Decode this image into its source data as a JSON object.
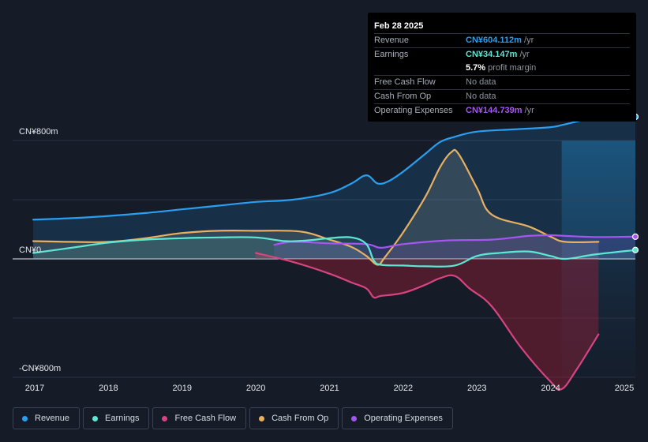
{
  "tooltip": {
    "date": "Feb 28 2025",
    "rows": [
      {
        "label": "Revenue",
        "value": "CN¥604.112m",
        "unit": " /yr",
        "color": "#2a9ff0"
      },
      {
        "label": "Earnings",
        "value": "CN¥34.147m",
        "unit": " /yr",
        "color": "#5ee8d4"
      },
      {
        "label": "",
        "value": "5.7%",
        "unit": " profit margin",
        "color": "#ffffff"
      },
      {
        "label": "Free Cash Flow",
        "value": "",
        "unit": "No data",
        "color": "#8e939d"
      },
      {
        "label": "Cash From Op",
        "value": "",
        "unit": "No data",
        "color": "#8e939d"
      },
      {
        "label": "Operating Expenses",
        "value": "CN¥144.739m",
        "unit": " /yr",
        "color": "#a655f2"
      }
    ]
  },
  "legend": [
    {
      "label": "Revenue",
      "color": "#2a9ff0"
    },
    {
      "label": "Earnings",
      "color": "#5ee8d4"
    },
    {
      "label": "Free Cash Flow",
      "color": "#d6457f"
    },
    {
      "label": "Cash From Op",
      "color": "#e8b063"
    },
    {
      "label": "Operating Expenses",
      "color": "#a655f2"
    }
  ],
  "chart_data": {
    "type": "line",
    "title": "",
    "xlabel": "",
    "ylabel": "",
    "ylim": [
      -800,
      800
    ],
    "y_tick_labels": [
      "CN¥800m",
      "CN¥0",
      "-CN¥800m"
    ],
    "y_tick_values": [
      800,
      0,
      -800
    ],
    "x_tick_labels": [
      "2017",
      "2018",
      "2019",
      "2020",
      "2021",
      "2022",
      "2023",
      "2024",
      "2025"
    ],
    "x_tick_values": [
      2017,
      2018,
      2019,
      2020,
      2021,
      2022,
      2023,
      2024,
      2025
    ],
    "xlim": [
      2016.7,
      2025.15
    ],
    "forecast_start": 2024.15,
    "series": [
      {
        "name": "Revenue",
        "color": "#2a9ff0",
        "x": [
          2016.98,
          2017.5,
          2018.0,
          2018.5,
          2019.0,
          2019.5,
          2020.0,
          2020.5,
          2021.0,
          2021.3,
          2021.5,
          2021.65,
          2021.8,
          2022.0,
          2022.3,
          2022.5,
          2022.7,
          2023.0,
          2023.5,
          2024.0,
          2024.2,
          2024.6,
          2025.15
        ],
        "y": [
          265,
          275,
          290,
          310,
          335,
          360,
          385,
          400,
          445,
          510,
          565,
          510,
          525,
          590,
          710,
          790,
          825,
          860,
          875,
          890,
          910,
          950,
          960
        ]
      },
      {
        "name": "Earnings",
        "color": "#5ee8d4",
        "x": [
          2016.98,
          2017.5,
          2018.0,
          2018.5,
          2019.0,
          2019.5,
          2020.0,
          2020.4,
          2020.7,
          2021.0,
          2021.3,
          2021.5,
          2021.6,
          2021.7,
          2022.0,
          2022.3,
          2022.7,
          2023.0,
          2023.3,
          2023.7,
          2024.0,
          2024.2,
          2024.6,
          2025.15
        ],
        "y": [
          40,
          75,
          110,
          130,
          140,
          145,
          145,
          120,
          125,
          140,
          145,
          100,
          -10,
          -40,
          -45,
          -50,
          -45,
          20,
          40,
          50,
          20,
          0,
          30,
          60
        ]
      },
      {
        "name": "Free Cash Flow",
        "color": "#d6457f",
        "x": [
          2020.0,
          2020.5,
          2021.0,
          2021.3,
          2021.5,
          2021.6,
          2021.7,
          2022.0,
          2022.3,
          2022.5,
          2022.7,
          2022.9,
          2023.2,
          2023.6,
          2024.0,
          2024.15,
          2024.35,
          2024.65
        ],
        "y": [
          40,
          -20,
          -100,
          -160,
          -200,
          -260,
          -250,
          -230,
          -175,
          -130,
          -115,
          -200,
          -320,
          -600,
          -830,
          -880,
          -750,
          -510
        ]
      },
      {
        "name": "Cash From Op",
        "color": "#e8b063",
        "x": [
          2016.98,
          2017.5,
          2018.0,
          2018.5,
          2019.0,
          2019.5,
          2020.0,
          2020.6,
          2021.0,
          2021.3,
          2021.5,
          2021.65,
          2021.75,
          2022.0,
          2022.3,
          2022.5,
          2022.65,
          2022.75,
          2023.0,
          2023.2,
          2023.7,
          2024.0,
          2024.2,
          2024.65
        ],
        "y": [
          120,
          115,
          115,
          140,
          175,
          190,
          190,
          185,
          130,
          80,
          20,
          -40,
          10,
          180,
          420,
          620,
          720,
          710,
          480,
          300,
          220,
          150,
          115,
          115
        ]
      },
      {
        "name": "Operating Expenses",
        "color": "#a655f2",
        "x": [
          2020.25,
          2020.5,
          2021.0,
          2021.5,
          2021.7,
          2022.0,
          2022.6,
          2023.2,
          2023.7,
          2024.0,
          2024.2,
          2024.6,
          2025.15
        ],
        "y": [
          95,
          115,
          105,
          100,
          75,
          100,
          125,
          130,
          155,
          160,
          155,
          148,
          150
        ]
      }
    ]
  }
}
